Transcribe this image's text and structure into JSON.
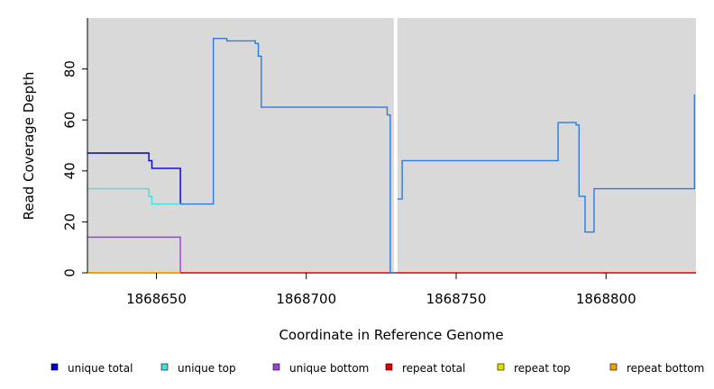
{
  "chart_data": {
    "type": "line",
    "title": "",
    "xlabel": "Coordinate in Reference Genome",
    "ylabel": "Read Coverage Depth",
    "xlim": [
      1868627,
      1868830
    ],
    "ylim": [
      0,
      100
    ],
    "x_ticks": [
      1868650,
      1868700,
      1868750,
      1868800
    ],
    "x_tick_labels": [
      "1868650",
      "1868700",
      "1868750",
      "1868800"
    ],
    "y_ticks": [
      0,
      20,
      40,
      60,
      80
    ],
    "y_tick_labels": [
      "0",
      "20",
      "40",
      "60",
      "80"
    ],
    "gap": [
      1868728,
      1868730
    ],
    "series": [
      {
        "name": "unique total",
        "color": "#0000cc",
        "points": [
          [
            1868627,
            47
          ],
          [
            1868647.5,
            47
          ],
          [
            1868647.5,
            44
          ],
          [
            1868648.5,
            44
          ],
          [
            1868648.5,
            41
          ],
          [
            1868658,
            41
          ],
          [
            1868658,
            27
          ]
        ]
      },
      {
        "name": "unique top",
        "color": "#40e0e0",
        "points": [
          [
            1868627,
            33
          ],
          [
            1868647.5,
            33
          ],
          [
            1868647.5,
            30
          ],
          [
            1868648.5,
            30
          ],
          [
            1868648.5,
            27
          ],
          [
            1868658,
            27
          ]
        ]
      },
      {
        "name": "unique bottom",
        "color": "#a040e0",
        "points": [
          [
            1868627,
            14
          ],
          [
            1868658,
            14
          ],
          [
            1868658,
            0
          ]
        ]
      },
      {
        "name": "repeat total",
        "color": "#e00000",
        "points": [
          [
            1868627,
            0
          ],
          [
            1868830,
            0
          ]
        ]
      },
      {
        "name": "repeat top",
        "color": "#e0e000",
        "points": [
          [
            1868627,
            0
          ],
          [
            1868658,
            0
          ]
        ]
      },
      {
        "name": "repeat bottom",
        "color": "#f0a000",
        "points": [
          [
            1868627,
            0
          ],
          [
            1868658,
            0
          ]
        ]
      },
      {
        "name": "",
        "color": "#2b7be0",
        "points": [
          [
            1868658,
            27
          ],
          [
            1868669,
            27
          ],
          [
            1868669,
            92
          ],
          [
            1868673.5,
            92
          ],
          [
            1868673.5,
            91
          ],
          [
            1868683,
            91
          ],
          [
            1868683,
            90
          ],
          [
            1868684,
            90
          ],
          [
            1868684,
            85
          ],
          [
            1868685,
            85
          ],
          [
            1868685,
            65
          ],
          [
            1868727,
            65
          ],
          [
            1868727,
            62
          ],
          [
            1868728,
            62
          ],
          [
            1868728,
            0
          ],
          [
            1868730,
            0
          ],
          [
            1868730,
            29
          ],
          [
            1868732,
            29
          ],
          [
            1868732,
            44
          ],
          [
            1868784,
            44
          ],
          [
            1868784,
            59
          ],
          [
            1868790,
            59
          ],
          [
            1868790,
            58
          ],
          [
            1868791,
            58
          ],
          [
            1868791,
            30
          ],
          [
            1868793,
            30
          ],
          [
            1868793,
            16
          ],
          [
            1868796,
            16
          ],
          [
            1868796,
            33
          ],
          [
            1868829.5,
            33
          ],
          [
            1868829.5,
            70
          ]
        ]
      }
    ],
    "legend_position": "bottom"
  },
  "legend": {
    "items": [
      {
        "label": "unique total",
        "color": "#0000cc"
      },
      {
        "label": "unique top",
        "color": "#40e0e0"
      },
      {
        "label": "unique bottom",
        "color": "#a040e0"
      },
      {
        "label": "repeat total",
        "color": "#e00000"
      },
      {
        "label": "repeat top",
        "color": "#e0e000"
      },
      {
        "label": "repeat bottom",
        "color": "#f0a000"
      }
    ]
  },
  "colors": {
    "plot_background": "#d9d9d9",
    "axis": "#000000"
  }
}
